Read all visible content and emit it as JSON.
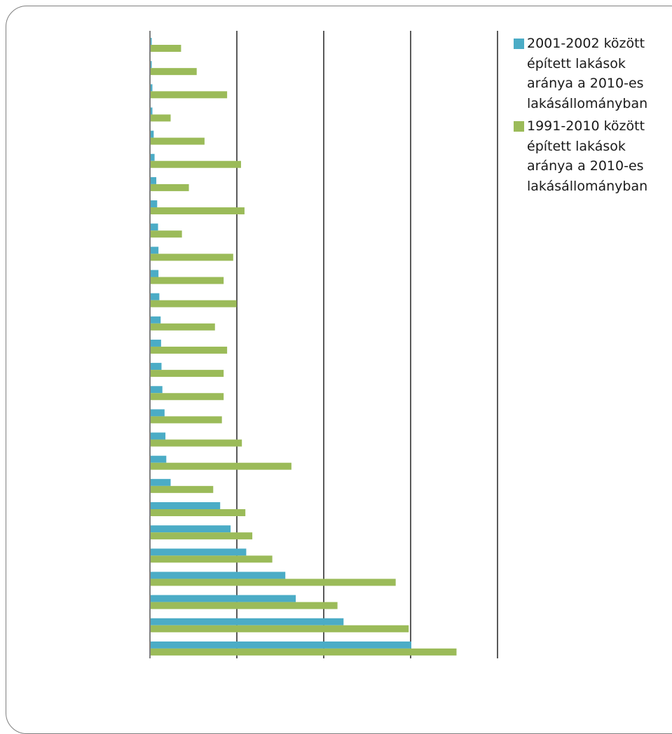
{
  "chart_data": {
    "type": "bar",
    "orientation": "horizontal",
    "grid": true,
    "legend_position": "right",
    "xlim": [
      0,
      40
    ],
    "category_count": 27,
    "series": [
      {
        "name": "2001-2002 között épített lakások aránya a 2010-es lakásállományban",
        "color": "#4bacc6",
        "values": [
          0.1,
          0.1,
          0.2,
          0.2,
          0.35,
          0.45,
          0.65,
          0.75,
          0.85,
          0.9,
          0.9,
          1.0,
          1.15,
          1.2,
          1.25,
          1.35,
          1.6,
          1.7,
          1.8,
          2.3,
          8.0,
          9.2,
          11.0,
          15.5,
          16.7,
          22.2,
          30.0
        ]
      },
      {
        "name": "1991-2010 között épített lakások aránya a 2010-es lakásállományban",
        "color": "#9bbb59",
        "values": [
          3.5,
          5.3,
          8.8,
          2.3,
          6.2,
          10.4,
          4.4,
          10.8,
          3.6,
          9.5,
          8.4,
          9.9,
          7.4,
          8.8,
          8.4,
          8.4,
          8.2,
          10.5,
          16.2,
          7.2,
          10.9,
          11.7,
          14.0,
          28.2,
          21.5,
          29.7,
          35.2
        ]
      }
    ]
  }
}
